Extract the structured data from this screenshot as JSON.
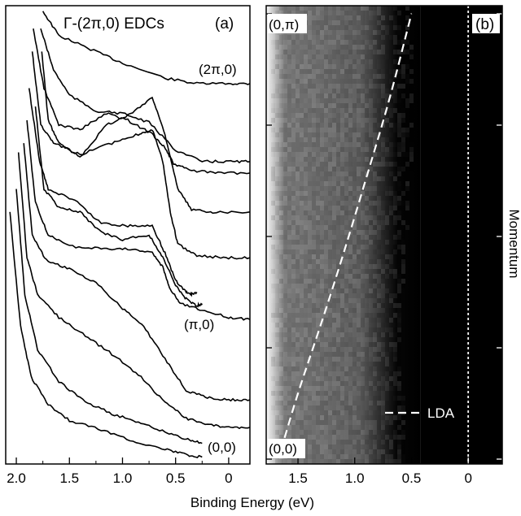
{
  "chart_data": [
    {
      "type": "line",
      "panel_label": "(a)",
      "title": "Γ-(2π,0) EDCs",
      "xlabel": "Binding Energy (eV)",
      "x_reversed": true,
      "xlim": [
        2.1,
        -0.2
      ],
      "x_ticks": [
        2.0,
        1.5,
        1.0,
        0.5,
        0.0
      ],
      "x_tick_labels": [
        "2.0",
        "1.5",
        "1.0",
        "0.5",
        "0"
      ],
      "curve_labels": [
        "(2π,0)",
        "(π,0)",
        "(0,0)"
      ],
      "series": [
        {
          "points": [
            [
              1.75,
              0.988
            ],
            [
              1.6,
              0.935
            ],
            [
              1.3,
              0.905
            ],
            [
              1.0,
              0.875
            ],
            [
              0.6,
              0.842
            ],
            [
              0.3,
              0.83
            ],
            [
              0.0,
              0.83
            ],
            [
              -0.2,
              0.83
            ]
          ]
        },
        {
          "points": [
            [
              1.77,
              0.95
            ],
            [
              1.65,
              0.86
            ],
            [
              1.5,
              0.805
            ],
            [
              1.25,
              0.77
            ],
            [
              1.0,
              0.765
            ],
            [
              0.75,
              0.745
            ],
            [
              0.5,
              0.685
            ],
            [
              0.25,
              0.66
            ],
            [
              0.0,
              0.66
            ],
            [
              -0.2,
              0.66
            ]
          ]
        },
        {
          "points": [
            [
              1.84,
              0.95
            ],
            [
              1.74,
              0.82
            ],
            [
              1.6,
              0.74
            ],
            [
              1.4,
              0.73
            ],
            [
              1.15,
              0.765
            ],
            [
              0.95,
              0.75
            ],
            [
              0.72,
              0.72
            ],
            [
              0.6,
              0.69
            ],
            [
              0.52,
              0.655
            ],
            [
              0.35,
              0.64
            ],
            [
              0.1,
              0.635
            ],
            [
              -0.2,
              0.635
            ]
          ]
        },
        {
          "points": [
            [
              1.76,
              0.9
            ],
            [
              1.7,
              0.75
            ],
            [
              1.6,
              0.7
            ],
            [
              1.4,
              0.67
            ],
            [
              1.15,
              0.74
            ],
            [
              0.95,
              0.76
            ],
            [
              0.72,
              0.8
            ],
            [
              0.6,
              0.72
            ],
            [
              0.48,
              0.6
            ],
            [
              0.35,
              0.555
            ],
            [
              0.15,
              0.55
            ],
            [
              -0.2,
              0.55
            ]
          ]
        },
        {
          "points": [
            [
              1.85,
              0.9
            ],
            [
              1.77,
              0.74
            ],
            [
              1.65,
              0.7
            ],
            [
              1.4,
              0.675
            ],
            [
              1.1,
              0.7
            ],
            [
              0.85,
              0.72
            ],
            [
              0.72,
              0.73
            ],
            [
              0.62,
              0.66
            ],
            [
              0.55,
              0.55
            ],
            [
              0.48,
              0.48
            ],
            [
              0.3,
              0.455
            ],
            [
              0.05,
              0.45
            ],
            [
              -0.2,
              0.45
            ]
          ]
        },
        {
          "points": [
            [
              1.88,
              0.82
            ],
            [
              1.78,
              0.66
            ],
            [
              1.7,
              0.6
            ],
            [
              1.45,
              0.575
            ],
            [
              1.2,
              0.525
            ],
            [
              0.95,
              0.52
            ],
            [
              0.72,
              0.52
            ],
            [
              0.6,
              0.46
            ],
            [
              0.5,
              0.4
            ],
            [
              0.4,
              0.375
            ],
            [
              0.35,
              0.37
            ],
            [
              0.3,
              0.375
            ]
          ]
        },
        {
          "points": [
            [
              1.82,
              0.78
            ],
            [
              1.74,
              0.6
            ],
            [
              1.6,
              0.56
            ],
            [
              1.4,
              0.55
            ],
            [
              1.2,
              0.505
            ],
            [
              1.0,
              0.49
            ],
            [
              0.75,
              0.5
            ],
            [
              0.62,
              0.45
            ],
            [
              0.5,
              0.39
            ],
            [
              0.4,
              0.36
            ],
            [
              0.3,
              0.345
            ],
            [
              0.25,
              0.35
            ]
          ]
        },
        {
          "points": [
            [
              1.9,
              0.75
            ],
            [
              1.82,
              0.57
            ],
            [
              1.7,
              0.5
            ],
            [
              1.5,
              0.475
            ],
            [
              1.2,
              0.47
            ],
            [
              0.95,
              0.47
            ],
            [
              0.72,
              0.46
            ],
            [
              0.62,
              0.43
            ],
            [
              0.55,
              0.38
            ],
            [
              0.45,
              0.35
            ],
            [
              0.25,
              0.335
            ],
            [
              0.0,
              0.32
            ],
            [
              -0.2,
              0.315
            ]
          ]
        },
        {
          "points": [
            [
              1.93,
              0.7
            ],
            [
              1.85,
              0.5
            ],
            [
              1.72,
              0.445
            ],
            [
              1.5,
              0.425
            ],
            [
              1.25,
              0.395
            ],
            [
              1.0,
              0.34
            ],
            [
              0.8,
              0.3
            ],
            [
              0.6,
              0.23
            ],
            [
              0.4,
              0.16
            ],
            [
              0.2,
              0.145
            ],
            [
              0.0,
              0.14
            ],
            [
              -0.2,
              0.14
            ]
          ]
        },
        {
          "points": [
            [
              1.98,
              0.68
            ],
            [
              1.9,
              0.45
            ],
            [
              1.8,
              0.37
            ],
            [
              1.6,
              0.32
            ],
            [
              1.35,
              0.28
            ],
            [
              1.1,
              0.24
            ],
            [
              0.85,
              0.195
            ],
            [
              0.6,
              0.135
            ],
            [
              0.4,
              0.1
            ],
            [
              0.2,
              0.085
            ],
            [
              0.0,
              0.08
            ],
            [
              -0.2,
              0.08
            ]
          ]
        },
        {
          "points": [
            [
              2.0,
              0.6
            ],
            [
              1.92,
              0.37
            ],
            [
              1.8,
              0.25
            ],
            [
              1.6,
              0.18
            ],
            [
              1.35,
              0.135
            ],
            [
              1.1,
              0.11
            ],
            [
              0.85,
              0.09
            ],
            [
              0.6,
              0.07
            ],
            [
              0.4,
              0.055
            ],
            [
              0.25,
              0.045
            ]
          ]
        },
        {
          "points": [
            [
              2.06,
              0.55
            ],
            [
              1.96,
              0.3
            ],
            [
              1.86,
              0.19
            ],
            [
              1.7,
              0.13
            ],
            [
              1.5,
              0.095
            ],
            [
              1.2,
              0.075
            ],
            [
              0.9,
              0.05
            ],
            [
              0.6,
              0.032
            ],
            [
              0.4,
              0.02
            ],
            [
              0.25,
              0.015
            ]
          ]
        }
      ]
    },
    {
      "type": "heatmap",
      "panel_label": "(b)",
      "xlabel": "Binding Energy (eV)",
      "ylabel": "Momentum",
      "x_reversed": true,
      "xlim": [
        1.78,
        -0.3
      ],
      "x_ticks": [
        1.5,
        1.0,
        0.5,
        0.0
      ],
      "x_tick_labels": [
        "1.5",
        "1.0",
        "0.5",
        "0"
      ],
      "y_end_labels": [
        "(0,π)",
        "(0,0)"
      ],
      "y_ticks": [
        0.0,
        0.25,
        0.5,
        0.75,
        1.0
      ],
      "fermi_level": 0.0,
      "legend_label": "LDA",
      "lda_dispersion": [
        [
          1.65,
          0.02
        ],
        [
          1.5,
          0.15
        ],
        [
          1.3,
          0.3
        ],
        [
          1.1,
          0.46
        ],
        [
          0.9,
          0.63
        ],
        [
          0.7,
          0.8
        ],
        [
          0.5,
          1.0
        ]
      ]
    }
  ]
}
